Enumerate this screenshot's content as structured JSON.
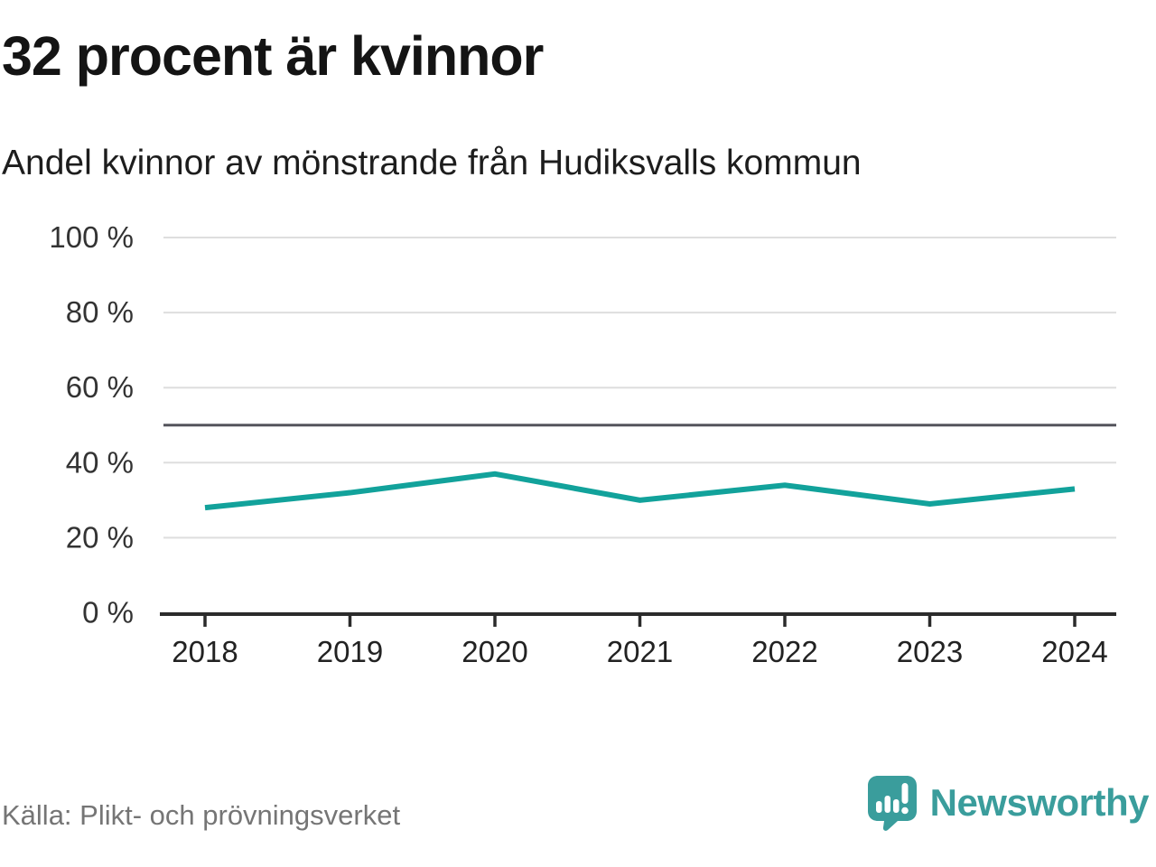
{
  "header": {
    "title": "32 procent är kvinnor",
    "subtitle": "Andel kvinnor av mönstrande från Hudiksvalls kommun"
  },
  "footer": {
    "source": "Källa: Plikt- och prövningsverket",
    "brand": "Newsworthy"
  },
  "colors": {
    "line": "#12a29b",
    "brand": "#3a9d9c",
    "grid": "#dedede",
    "reference_line": "#54545c",
    "axis": "#2b2b2b",
    "y_tick_label": "#333333",
    "x_tick_label": "#222222",
    "source_text": "#757575"
  },
  "chart_data": {
    "type": "line",
    "title": "32 procent är kvinnor",
    "subtitle": "Andel kvinnor av mönstrande från Hudiksvalls kommun",
    "categories": [
      "2018",
      "2019",
      "2020",
      "2021",
      "2022",
      "2023",
      "2024"
    ],
    "series": [
      {
        "name": "Andel kvinnor av mönstrande",
        "values": [
          28,
          32,
          37,
          30,
          34,
          29,
          33
        ]
      }
    ],
    "unit": "%",
    "ylim": [
      0,
      100
    ],
    "yticks": [
      0,
      20,
      40,
      60,
      80,
      100
    ],
    "ytick_suffix": " %",
    "reference_line": 50,
    "grid": true,
    "legend": "none",
    "source": "Källa: Plikt- och prövningsverket"
  }
}
